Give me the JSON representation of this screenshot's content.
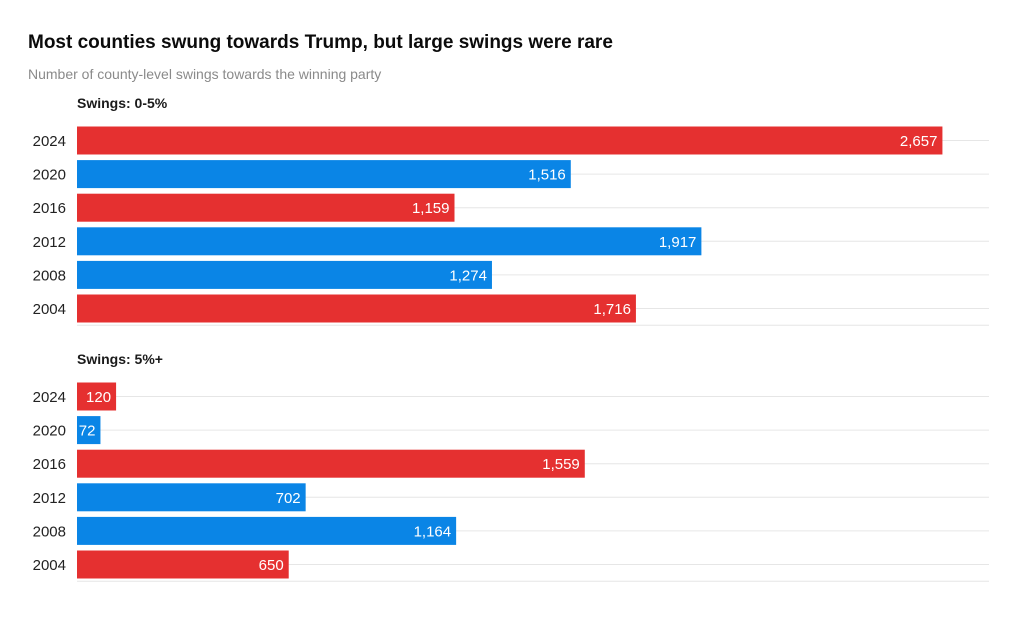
{
  "title": "Most counties swung towards Trump, but large swings were rare",
  "subtitle": "Number of county-level swings towards the winning party",
  "colors": {
    "red": "#e53030",
    "blue": "#0a85e6",
    "grid": "#e6e6e6"
  },
  "chart_data": {
    "type": "bar",
    "orientation": "horizontal",
    "xlim": [
      0,
      2800
    ],
    "panels": [
      {
        "title": "Swings: 0-5%",
        "rows": [
          {
            "year": "2024",
            "value": 2657,
            "label": "2,657",
            "party": "red"
          },
          {
            "year": "2020",
            "value": 1516,
            "label": "1,516",
            "party": "blue"
          },
          {
            "year": "2016",
            "value": 1159,
            "label": "1,159",
            "party": "red"
          },
          {
            "year": "2012",
            "value": 1917,
            "label": "1,917",
            "party": "blue"
          },
          {
            "year": "2008",
            "value": 1274,
            "label": "1,274",
            "party": "blue"
          },
          {
            "year": "2004",
            "value": 1716,
            "label": "1,716",
            "party": "red"
          }
        ]
      },
      {
        "title": "Swings: 5%+",
        "rows": [
          {
            "year": "2024",
            "value": 120,
            "label": "120",
            "party": "red"
          },
          {
            "year": "2020",
            "value": 72,
            "label": "72",
            "party": "blue"
          },
          {
            "year": "2016",
            "value": 1559,
            "label": "1,559",
            "party": "red"
          },
          {
            "year": "2012",
            "value": 702,
            "label": "702",
            "party": "blue"
          },
          {
            "year": "2008",
            "value": 1164,
            "label": "1,164",
            "party": "blue"
          },
          {
            "year": "2004",
            "value": 650,
            "label": "650",
            "party": "red"
          }
        ]
      }
    ]
  }
}
